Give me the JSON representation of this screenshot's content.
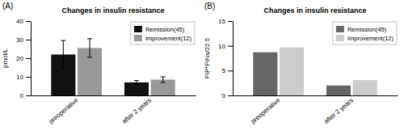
{
  "chart_data": [
    {
      "type": "bar",
      "title": "Changes in insulin resistance",
      "panel_label": "(A)",
      "ylabel": "pmol/L",
      "categories": [
        "preoperative",
        "after 2 years"
      ],
      "series": [
        {
          "name": "Remission(45)",
          "color": "#111111",
          "values": [
            22,
            7
          ],
          "errors": [
            7.5,
            1.0
          ]
        },
        {
          "name": "Improvement(12)",
          "color": "#999999",
          "values": [
            25.5,
            8.5
          ],
          "errors": [
            5.0,
            1.5
          ]
        }
      ],
      "ylim": [
        0,
        40
      ],
      "yticks": [
        0,
        10,
        20,
        30,
        40
      ],
      "grid": false,
      "legend": "upper right"
    },
    {
      "type": "bar",
      "title": "Changes in insulin resistance",
      "panel_label": "(B)",
      "ylabel": "FIP*FINs/22.5",
      "categories": [
        "preoperative",
        "after 2 years"
      ],
      "series": [
        {
          "name": "Remission(45)",
          "color": "#666666",
          "values": [
            8.7,
            2.0
          ]
        },
        {
          "name": "Improvement(12)",
          "color": "#cccccc",
          "values": [
            9.7,
            3.1
          ]
        }
      ],
      "ylim": [
        0,
        15
      ],
      "yticks": [
        0,
        5,
        10,
        15
      ],
      "grid": false,
      "legend": "upper right"
    }
  ]
}
